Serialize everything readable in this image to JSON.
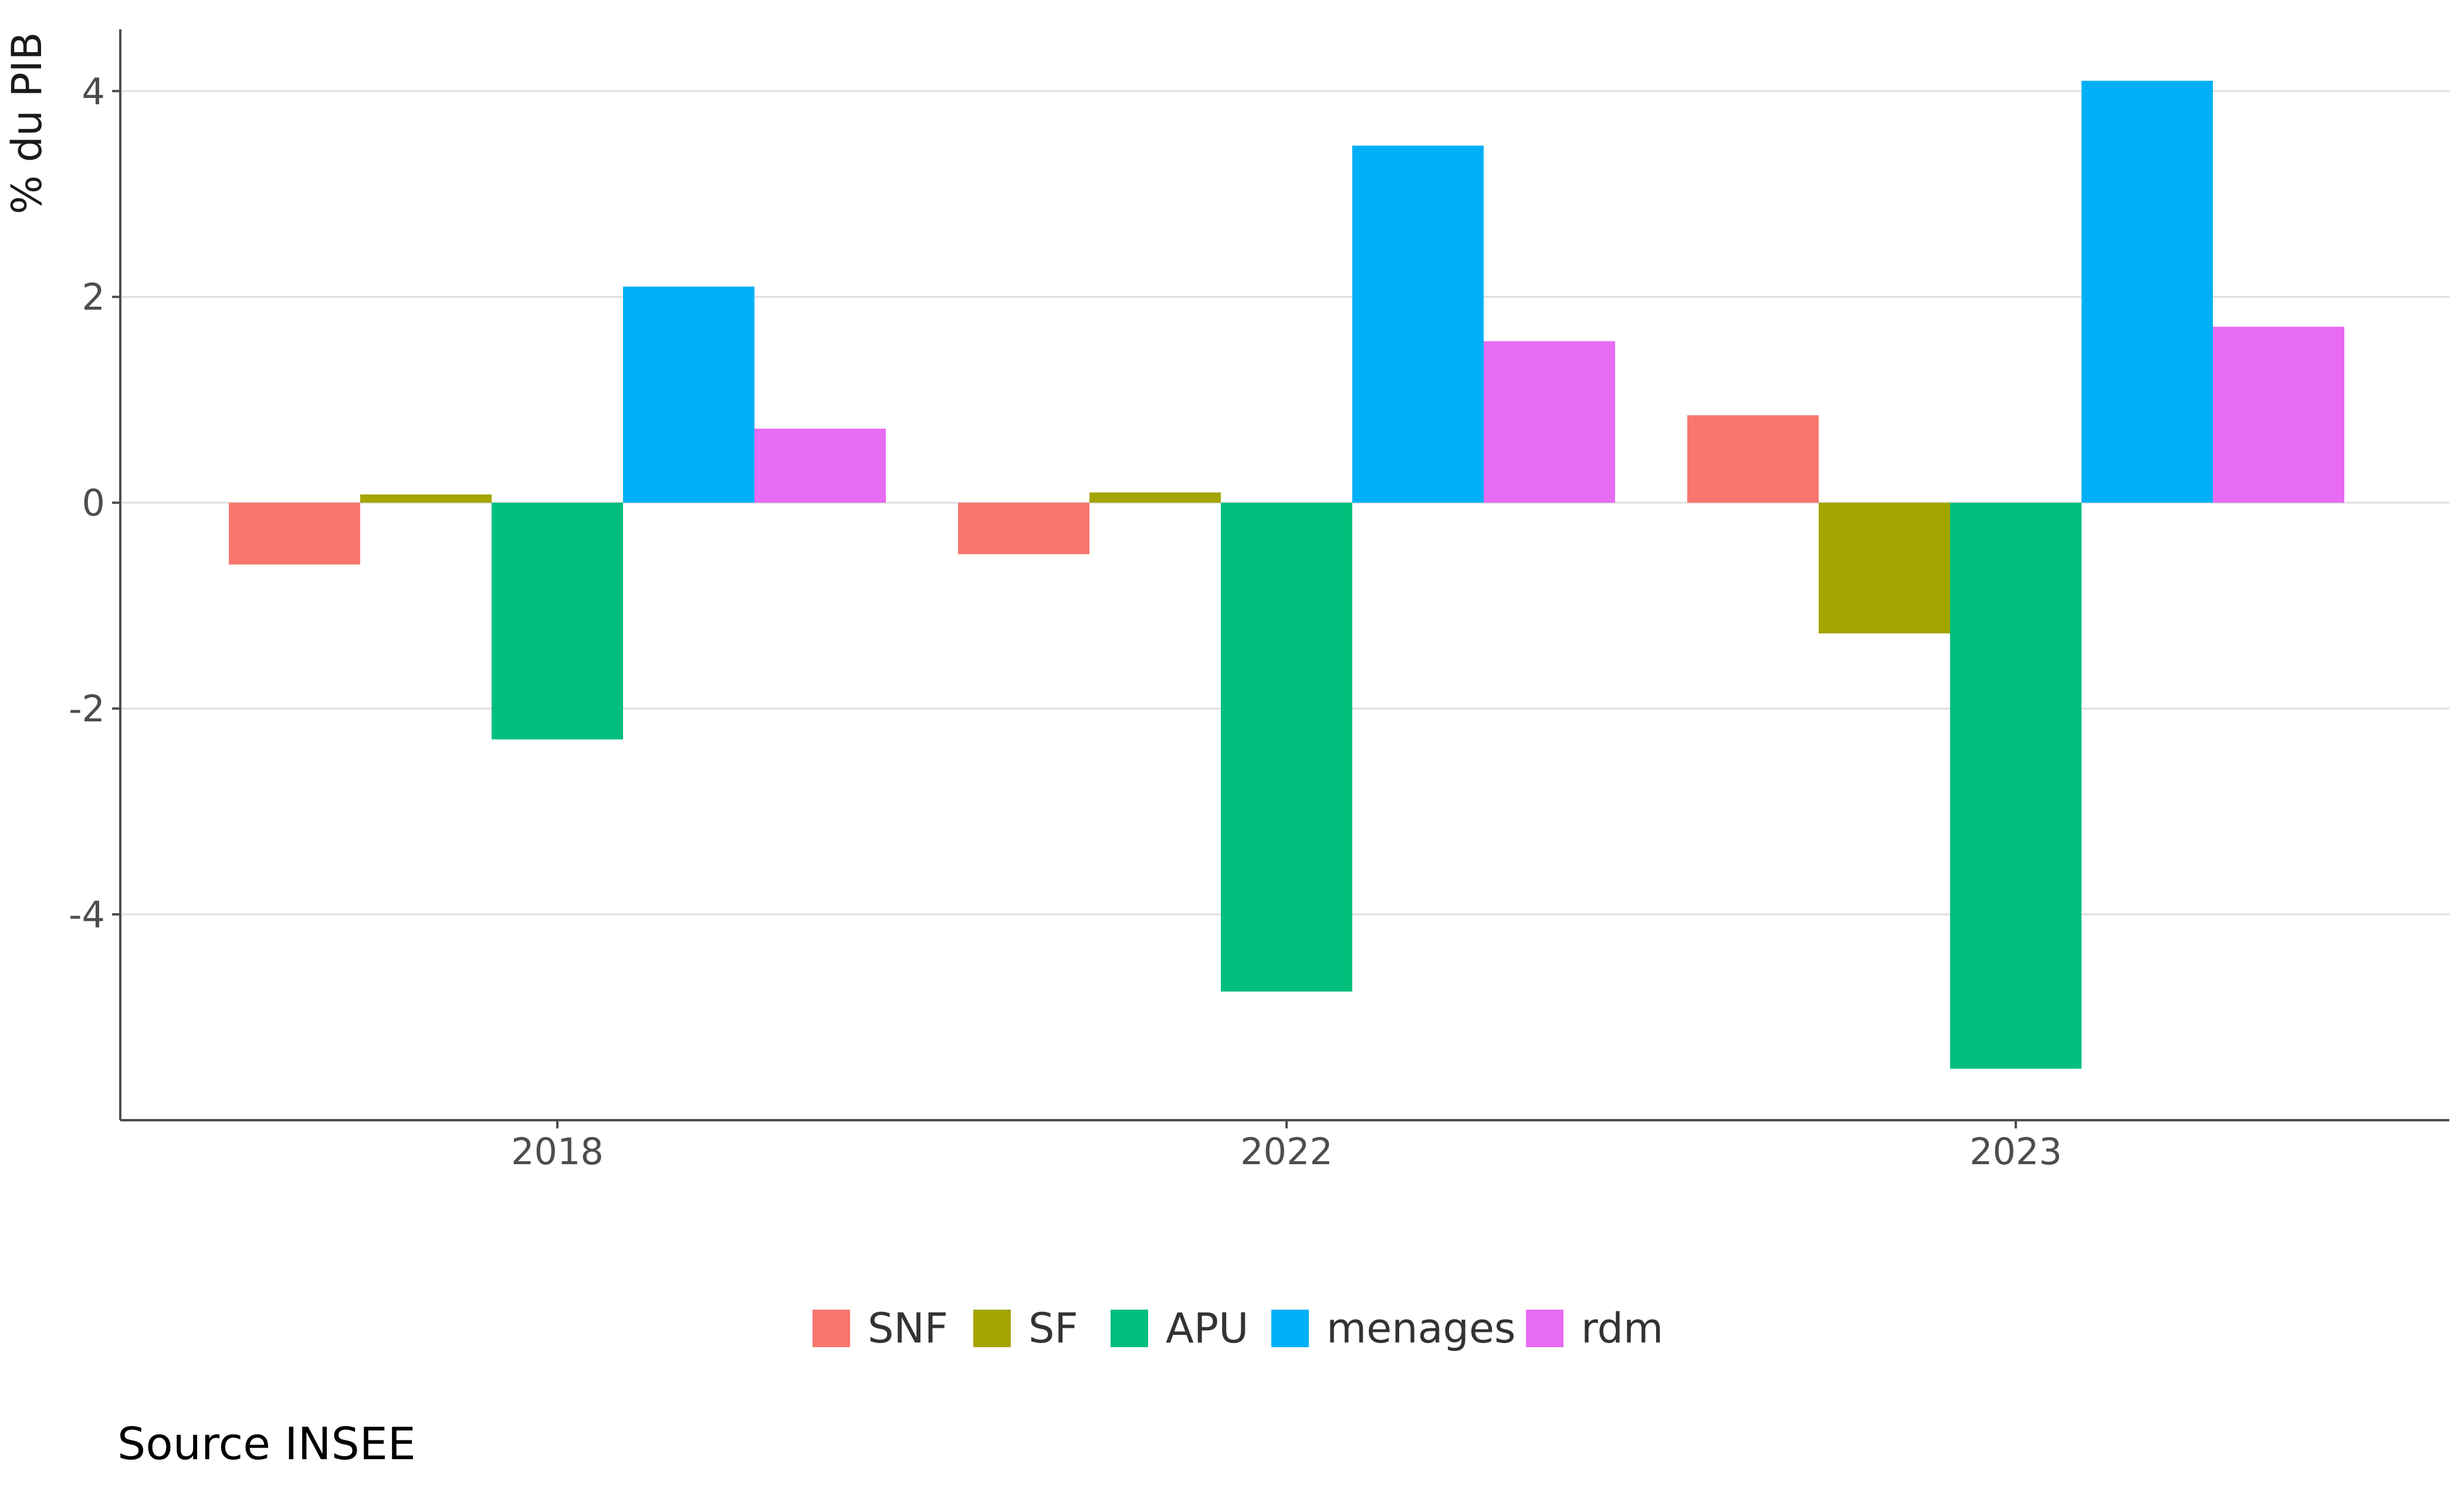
{
  "chart_data": {
    "type": "bar",
    "title": "",
    "xlabel": "",
    "ylabel": "% du PIB",
    "categories": [
      "2018",
      "2022",
      "2023"
    ],
    "series": [
      {
        "name": "SNF",
        "color": "#F8766D",
        "values": [
          -0.6,
          -0.5,
          0.85
        ]
      },
      {
        "name": "SF",
        "color": "#A3A500",
        "values": [
          0.08,
          0.1,
          -1.27
        ]
      },
      {
        "name": "APU",
        "color": "#00BF7D",
        "values": [
          -2.3,
          -4.75,
          -5.5
        ]
      },
      {
        "name": "menages",
        "color": "#00B0F6",
        "values": [
          2.1,
          3.47,
          4.1
        ]
      },
      {
        "name": "rdm",
        "color": "#E76BF3",
        "values": [
          0.72,
          1.57,
          1.71
        ]
      }
    ],
    "ylim": [
      -6,
      4.6
    ],
    "yticks": [
      -4,
      -2,
      0,
      2,
      4
    ],
    "ytick_labels": [
      "-4",
      "-2",
      "0",
      "2",
      "4"
    ],
    "grid": true,
    "legend_position": "bottom"
  },
  "caption": "Source INSEE"
}
